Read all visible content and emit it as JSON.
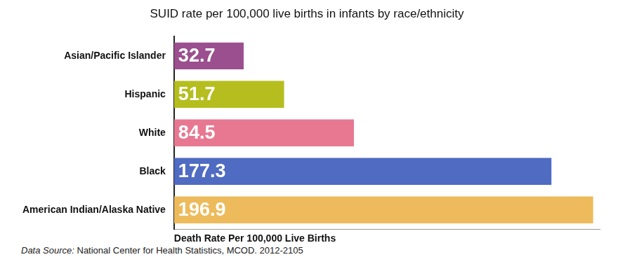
{
  "chart_data": {
    "type": "bar",
    "orientation": "horizontal",
    "title": "SUID rate per 100,000 live births in infants by race/ethnicity",
    "x_label": "Death Rate Per 100,000 Live Births",
    "annotations": [
      "Data Source: National Center for Health Statistics, MCOD. 2012-2105"
    ],
    "categories": [
      "Asian/Pacific Islander",
      "Hispanic",
      "White",
      "Black",
      "American Indian/Alaska Native"
    ],
    "values": [
      32.7,
      51.7,
      84.5,
      177.3,
      196.9
    ],
    "colors": [
      "#9b4f8e",
      "#b5be1e",
      "#e87891",
      "#4f6bc2",
      "#edbb5b"
    ],
    "xlim": [
      0,
      200
    ],
    "grid": false,
    "data_labels": true,
    "tick_labels": "y"
  }
}
